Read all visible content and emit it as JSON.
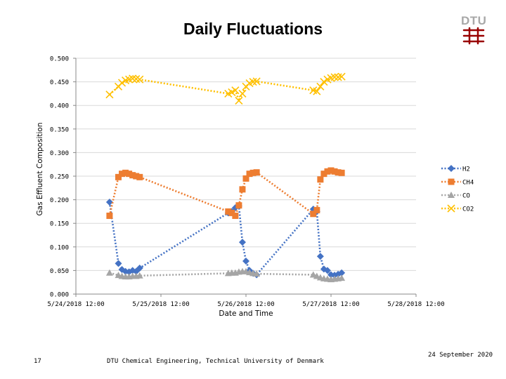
{
  "slide": {
    "logo_text": "DTU",
    "page_number": "17",
    "footer_text": "DTU Chemical Engineering, Technical University of Denmark",
    "date": "24 September 2020"
  },
  "colors": {
    "H2": "#4472c4",
    "CH4": "#ed7d31",
    "CO": "#a5a5a5",
    "CO2": "#ffc000",
    "logo_red": "#990000"
  },
  "chart_data": {
    "type": "line",
    "title": "Daily Fluctuations",
    "xlabel": "Date and Time",
    "ylabel": "Gas Effluent Composition",
    "ylim": [
      0,
      0.5
    ],
    "yticks": [
      "0.000",
      "0.050",
      "0.100",
      "0.150",
      "0.200",
      "0.250",
      "0.300",
      "0.350",
      "0.400",
      "0.450",
      "0.500"
    ],
    "xlim": [
      "2018-05-24 12:00",
      "2018-05-28 12:00"
    ],
    "xticks": [
      "5/24/2018 12:00",
      "5/25/2018 12:00",
      "5/26/2018 12:00",
      "5/27/2018 12:00",
      "5/28/2018 12:00"
    ],
    "grid": true,
    "legend_position": "right",
    "line_style": "dotted",
    "series": [
      {
        "name": "H2",
        "marker": "diamond",
        "x": [
          "2018-05-24 21:30",
          "2018-05-25 00:00",
          "2018-05-25 01:00",
          "2018-05-25 02:00",
          "2018-05-25 03:00",
          "2018-05-25 04:00",
          "2018-05-25 05:00",
          "2018-05-25 06:00",
          "2018-05-26 07:00",
          "2018-05-26 08:00",
          "2018-05-26 09:00",
          "2018-05-26 10:00",
          "2018-05-26 11:00",
          "2018-05-26 12:00",
          "2018-05-26 13:00",
          "2018-05-26 14:00",
          "2018-05-26 15:00",
          "2018-05-27 07:00",
          "2018-05-27 08:00",
          "2018-05-27 09:00",
          "2018-05-27 10:00",
          "2018-05-27 11:00",
          "2018-05-27 12:00",
          "2018-05-27 13:00",
          "2018-05-27 14:00",
          "2018-05-27 15:00"
        ],
        "y": [
          0.195,
          0.065,
          0.052,
          0.048,
          0.047,
          0.05,
          0.048,
          0.055,
          0.172,
          0.175,
          0.183,
          0.187,
          0.11,
          0.07,
          0.05,
          0.044,
          0.041,
          0.18,
          0.175,
          0.08,
          0.053,
          0.05,
          0.041,
          0.04,
          0.042,
          0.045
        ]
      },
      {
        "name": "CH4",
        "marker": "square",
        "x": [
          "2018-05-24 21:30",
          "2018-05-25 00:00",
          "2018-05-25 01:00",
          "2018-05-25 02:00",
          "2018-05-25 03:00",
          "2018-05-25 04:00",
          "2018-05-25 05:00",
          "2018-05-25 06:00",
          "2018-05-26 07:00",
          "2018-05-26 08:00",
          "2018-05-26 09:00",
          "2018-05-26 10:00",
          "2018-05-26 11:00",
          "2018-05-26 12:00",
          "2018-05-26 13:00",
          "2018-05-26 14:00",
          "2018-05-26 15:00",
          "2018-05-27 07:00",
          "2018-05-27 08:00",
          "2018-05-27 09:00",
          "2018-05-27 10:00",
          "2018-05-27 11:00",
          "2018-05-27 12:00",
          "2018-05-27 13:00",
          "2018-05-27 14:00",
          "2018-05-27 15:00"
        ],
        "y": [
          0.166,
          0.248,
          0.255,
          0.257,
          0.255,
          0.252,
          0.25,
          0.248,
          0.175,
          0.172,
          0.166,
          0.188,
          0.222,
          0.245,
          0.255,
          0.257,
          0.258,
          0.17,
          0.178,
          0.243,
          0.255,
          0.26,
          0.262,
          0.26,
          0.258,
          0.257
        ]
      },
      {
        "name": "CO",
        "marker": "triangle",
        "x": [
          "2018-05-24 21:30",
          "2018-05-25 00:00",
          "2018-05-25 01:00",
          "2018-05-25 02:00",
          "2018-05-25 03:00",
          "2018-05-25 04:00",
          "2018-05-25 05:00",
          "2018-05-25 06:00",
          "2018-05-26 07:00",
          "2018-05-26 08:00",
          "2018-05-26 09:00",
          "2018-05-26 10:00",
          "2018-05-26 11:00",
          "2018-05-26 12:00",
          "2018-05-26 13:00",
          "2018-05-26 14:00",
          "2018-05-26 15:00",
          "2018-05-27 07:00",
          "2018-05-27 08:00",
          "2018-05-27 09:00",
          "2018-05-27 10:00",
          "2018-05-27 11:00",
          "2018-05-27 12:00",
          "2018-05-27 13:00",
          "2018-05-27 14:00",
          "2018-05-27 15:00"
        ],
        "y": [
          0.045,
          0.04,
          0.038,
          0.037,
          0.037,
          0.038,
          0.038,
          0.039,
          0.044,
          0.045,
          0.045,
          0.047,
          0.048,
          0.048,
          0.046,
          0.044,
          0.043,
          0.041,
          0.038,
          0.035,
          0.033,
          0.032,
          0.031,
          0.032,
          0.033,
          0.034
        ]
      },
      {
        "name": "CO2",
        "marker": "x",
        "x": [
          "2018-05-24 21:30",
          "2018-05-25 00:00",
          "2018-05-25 01:00",
          "2018-05-25 02:00",
          "2018-05-25 03:00",
          "2018-05-25 04:00",
          "2018-05-25 05:00",
          "2018-05-25 06:00",
          "2018-05-26 07:00",
          "2018-05-26 08:00",
          "2018-05-26 09:00",
          "2018-05-26 10:00",
          "2018-05-26 11:00",
          "2018-05-26 12:00",
          "2018-05-26 13:00",
          "2018-05-26 14:00",
          "2018-05-26 15:00",
          "2018-05-27 07:00",
          "2018-05-27 08:00",
          "2018-05-27 09:00",
          "2018-05-27 10:00",
          "2018-05-27 11:00",
          "2018-05-27 12:00",
          "2018-05-27 13:00",
          "2018-05-27 14:00",
          "2018-05-27 15:00"
        ],
        "y": [
          0.423,
          0.44,
          0.448,
          0.453,
          0.455,
          0.457,
          0.456,
          0.455,
          0.425,
          0.428,
          0.432,
          0.41,
          0.425,
          0.44,
          0.447,
          0.45,
          0.451,
          0.432,
          0.43,
          0.44,
          0.45,
          0.455,
          0.458,
          0.46,
          0.46,
          0.461
        ]
      }
    ]
  }
}
